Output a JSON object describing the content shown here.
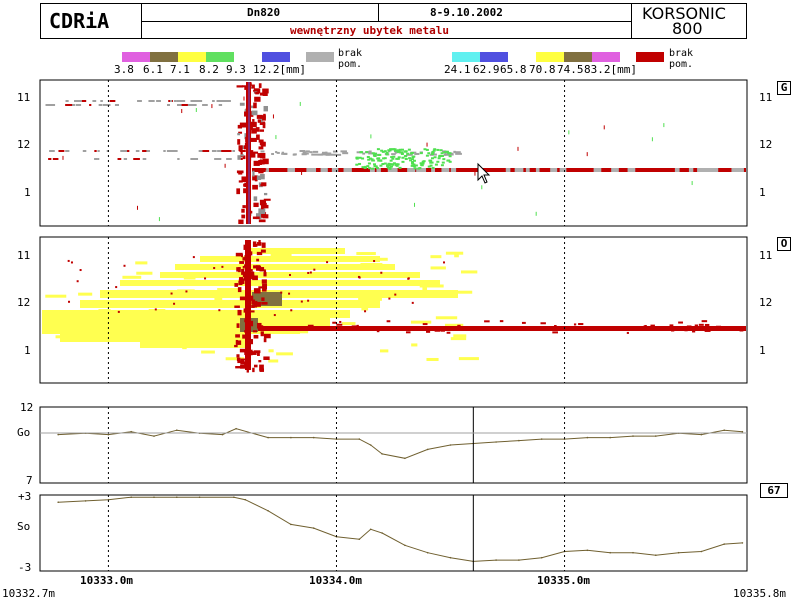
{
  "header": {
    "logo": "CDRiA",
    "pipe": "Dn820",
    "date": "8-9.10.2002",
    "defect": "wewnętrzny ubytek metalu",
    "brand_line1": "KORSONIC",
    "brand_line2": "800"
  },
  "legend_left": {
    "colors": [
      "#e060e0",
      "#807040",
      "#ffff40",
      "#60e060",
      "#ffffff",
      "#5050e0"
    ],
    "labels": [
      "3.8",
      "6.1",
      "7.1",
      "8.2",
      "9.3",
      "12.2[mm]"
    ],
    "missing_color": "#b0b0b0",
    "missing_label1": "brak",
    "missing_label2": "pom."
  },
  "legend_right": {
    "colors": [
      "#60f0f0",
      "#5050e0",
      "#ffffff",
      "#ffff40",
      "#807040",
      "#e060e0"
    ],
    "labels": [
      "24.1",
      "62.9",
      "65.8",
      "70.8",
      "74.5",
      "83.2[mm]"
    ],
    "missing_color": "#c00000",
    "missing_label1": "brak",
    "missing_label2": "pom."
  },
  "panel1": {
    "tag": "G",
    "ticks": [
      "11",
      "12",
      "1"
    ]
  },
  "panel2": {
    "tag": "O",
    "ticks": [
      "11",
      "12",
      "1"
    ]
  },
  "panel3": {
    "top": "12",
    "mid": "Go",
    "bottom": "7",
    "value": "67"
  },
  "panel4": {
    "top": "+3",
    "mid": "So",
    "bottom": "-3"
  },
  "xaxis": {
    "start": "10332.7m",
    "end": "10335.8m",
    "ticks": [
      "10333.0m",
      "10334.0m",
      "10335.0m"
    ]
  },
  "chart_data": {
    "type": "line",
    "x_range": [
      10332.7,
      10335.8
    ],
    "x_ticks": [
      10333.0,
      10334.0,
      10335.0
    ],
    "cursor_x": 10334.6,
    "go_series": {
      "name": "Go",
      "ylim": [
        7,
        12
      ],
      "x": [
        10332.78,
        10332.9,
        10333.0,
        10333.1,
        10333.2,
        10333.3,
        10333.4,
        10333.5,
        10333.56,
        10333.7,
        10333.8,
        10333.9,
        10334.0,
        10334.1,
        10334.15,
        10334.2,
        10334.3,
        10334.4,
        10334.5,
        10334.6,
        10334.7,
        10334.8,
        10334.9,
        10335.0,
        10335.1,
        10335.2,
        10335.3,
        10335.4,
        10335.5,
        10335.6,
        10335.7,
        10335.78
      ],
      "y": [
        10.2,
        10.3,
        10.2,
        10.4,
        10.1,
        10.5,
        10.3,
        10.2,
        10.6,
        10.0,
        10.0,
        10.0,
        9.9,
        9.9,
        9.5,
        8.9,
        8.6,
        9.2,
        9.5,
        9.6,
        9.7,
        9.8,
        9.9,
        9.9,
        10.0,
        10.0,
        10.1,
        10.1,
        10.3,
        10.2,
        10.5,
        10.4
      ]
    },
    "so_series": {
      "name": "So",
      "ylim": [
        -3,
        3
      ],
      "x": [
        10332.78,
        10332.9,
        10333.0,
        10333.1,
        10333.2,
        10333.3,
        10333.4,
        10333.55,
        10333.6,
        10333.7,
        10333.8,
        10333.9,
        10334.0,
        10334.1,
        10334.15,
        10334.2,
        10334.3,
        10334.4,
        10334.5,
        10334.6,
        10334.7,
        10334.8,
        10334.9,
        10335.0,
        10335.1,
        10335.2,
        10335.3,
        10335.4,
        10335.5,
        10335.6,
        10335.7,
        10335.78
      ],
      "y": [
        2.5,
        2.6,
        2.7,
        2.9,
        2.9,
        2.9,
        2.9,
        2.9,
        2.7,
        1.8,
        0.7,
        0.4,
        -0.3,
        -0.5,
        0.3,
        0.0,
        -1.0,
        -1.6,
        -2.0,
        -2.3,
        -2.2,
        -2.2,
        -2.0,
        -1.5,
        -1.4,
        -1.6,
        -1.6,
        -1.8,
        -1.6,
        -1.5,
        -0.9,
        -0.8
      ]
    }
  }
}
